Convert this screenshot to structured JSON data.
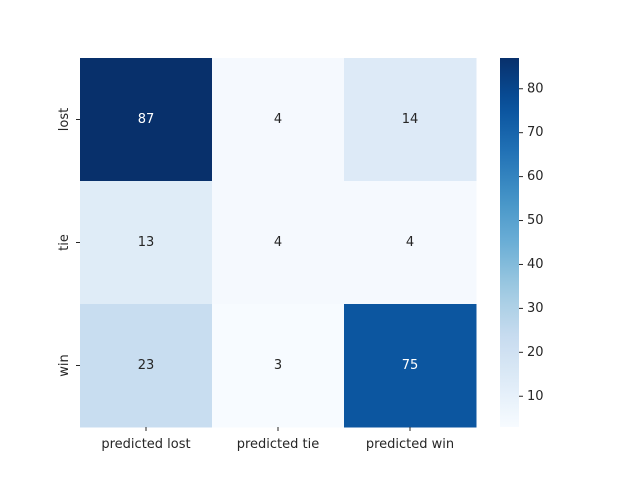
{
  "chart_data": {
    "type": "heatmap",
    "title": "",
    "xlabel": "",
    "ylabel": "",
    "x_categories": [
      "predicted lost",
      "predicted tie",
      "predicted win"
    ],
    "y_categories": [
      "lost",
      "tie",
      "win"
    ],
    "values": [
      [
        87,
        4,
        14
      ],
      [
        13,
        4,
        4
      ],
      [
        23,
        3,
        75
      ]
    ],
    "colormap": "Blues",
    "color_range": [
      3,
      87
    ],
    "colorbar_ticks": [
      10,
      20,
      30,
      40,
      50,
      60,
      70,
      80
    ],
    "annotated": true,
    "grid": false
  }
}
